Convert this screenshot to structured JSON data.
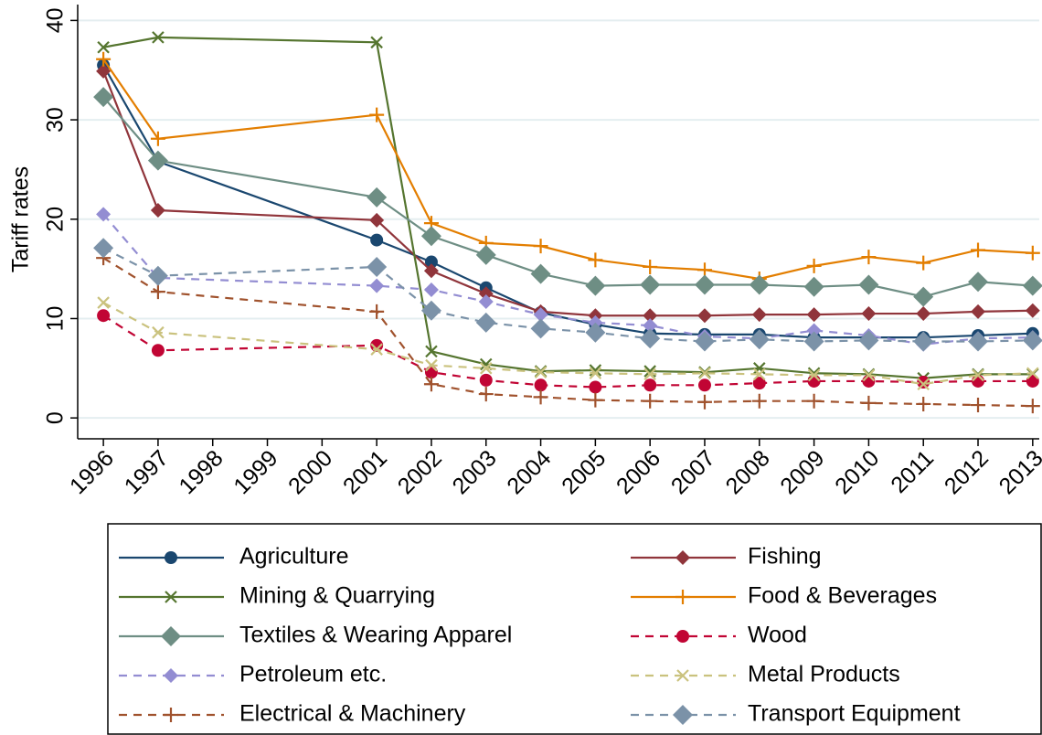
{
  "chart_data": {
    "type": "line",
    "y_label": "Tariff rates",
    "x": [
      1996,
      1997,
      2001,
      2002,
      2003,
      2004,
      2005,
      2006,
      2007,
      2008,
      2009,
      2010,
      2011,
      2012,
      2013
    ],
    "xlim": [
      1995.53,
      2013.12
    ],
    "xticks": [
      1996,
      1997,
      1998,
      1999,
      2000,
      2001,
      2002,
      2003,
      2004,
      2005,
      2006,
      2007,
      2008,
      2009,
      2010,
      2011,
      2012,
      2013
    ],
    "ylim": [
      -2.1,
      41.6
    ],
    "yticks": [
      0,
      10,
      20,
      30,
      40
    ],
    "grid": true,
    "legend": "bottom",
    "series": [
      {
        "name": "Agriculture",
        "color": "#1a476f",
        "marker": "circle",
        "dashed": false,
        "values": [
          35.5,
          25.8,
          17.9,
          15.7,
          13.1,
          10.6,
          9.4,
          8.5,
          8.4,
          8.4,
          8.1,
          8.1,
          8.1,
          8.3,
          8.5
        ]
      },
      {
        "name": "Fishing",
        "color": "#90353b",
        "marker": "diamond",
        "dashed": false,
        "values": [
          34.9,
          20.9,
          19.9,
          14.8,
          12.5,
          10.7,
          10.3,
          10.3,
          10.3,
          10.4,
          10.4,
          10.5,
          10.5,
          10.7,
          10.8
        ]
      },
      {
        "name": "Mining & Quarrying",
        "color": "#55752f",
        "marker": "x",
        "dashed": false,
        "values": [
          37.3,
          38.3,
          37.8,
          6.7,
          5.4,
          4.7,
          4.8,
          4.7,
          4.6,
          5.0,
          4.5,
          4.4,
          4.0,
          4.4,
          4.4
        ]
      },
      {
        "name": "Food & Beverages",
        "color": "#e37e00",
        "marker": "plus",
        "dashed": false,
        "values": [
          36.1,
          28.1,
          30.5,
          19.6,
          17.6,
          17.3,
          15.9,
          15.2,
          14.9,
          14.0,
          15.3,
          16.2,
          15.6,
          16.9,
          16.6
        ]
      },
      {
        "name": "Textiles & Wearing Apparel",
        "color": "#6e8e84",
        "marker": "bigdiamond",
        "dashed": false,
        "values": [
          32.3,
          25.9,
          22.2,
          18.3,
          16.4,
          14.5,
          13.3,
          13.4,
          13.4,
          13.4,
          13.2,
          13.4,
          12.2,
          13.7,
          13.3
        ]
      },
      {
        "name": "Wood",
        "color": "#c10534",
        "marker": "circle",
        "dashed": true,
        "values": [
          10.3,
          6.8,
          7.3,
          4.6,
          3.8,
          3.3,
          3.1,
          3.3,
          3.3,
          3.5,
          3.7,
          3.7,
          3.6,
          3.7,
          3.7
        ]
      },
      {
        "name": "Petroleum etc.",
        "color": "#938dd2",
        "marker": "diamond",
        "dashed": true,
        "values": [
          20.5,
          14.1,
          13.3,
          12.9,
          11.7,
          10.4,
          9.6,
          9.3,
          8.2,
          8.0,
          8.8,
          8.3,
          7.4,
          8.0,
          8.1
        ]
      },
      {
        "name": "Metal Products",
        "color": "#cac27e",
        "marker": "x",
        "dashed": true,
        "values": [
          11.6,
          8.6,
          6.9,
          5.3,
          5.0,
          4.6,
          4.5,
          4.4,
          4.5,
          4.4,
          4.3,
          4.3,
          3.4,
          4.3,
          4.5
        ]
      },
      {
        "name": "Electrical & Machinery",
        "color": "#a0522d",
        "marker": "plus",
        "dashed": true,
        "values": [
          16.1,
          12.7,
          10.7,
          3.4,
          2.4,
          2.1,
          1.8,
          1.7,
          1.6,
          1.7,
          1.7,
          1.5,
          1.4,
          1.3,
          1.2
        ]
      },
      {
        "name": "Transport Equipment",
        "color": "#7b92a8",
        "marker": "bigdiamond",
        "dashed": true,
        "values": [
          17.1,
          14.3,
          15.2,
          10.8,
          9.6,
          9.0,
          8.6,
          8.0,
          7.7,
          7.9,
          7.7,
          7.8,
          7.7,
          7.7,
          7.8
        ]
      }
    ]
  }
}
